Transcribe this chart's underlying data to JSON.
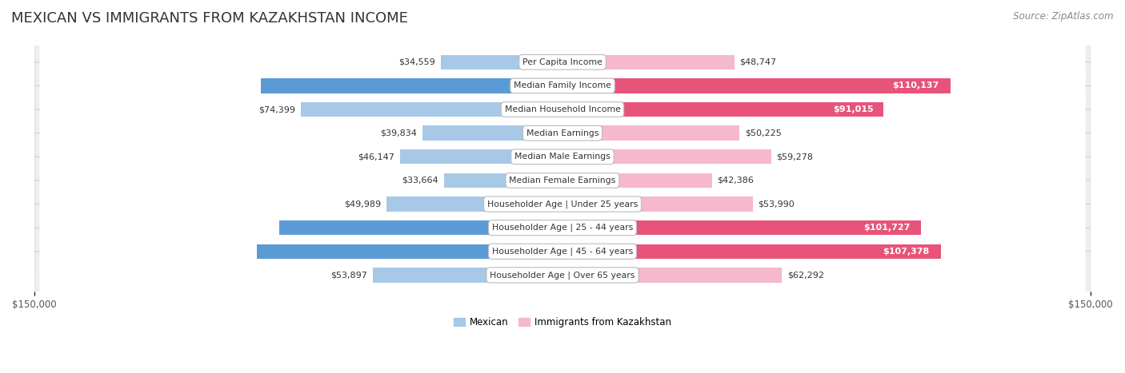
{
  "title": "MEXICAN VS IMMIGRANTS FROM KAZAKHSTAN INCOME",
  "source": "Source: ZipAtlas.com",
  "categories": [
    "Per Capita Income",
    "Median Family Income",
    "Median Household Income",
    "Median Earnings",
    "Median Male Earnings",
    "Median Female Earnings",
    "Householder Age | Under 25 years",
    "Householder Age | 25 - 44 years",
    "Householder Age | 45 - 64 years",
    "Householder Age | Over 65 years"
  ],
  "mexican_values": [
    34559,
    85618,
    74399,
    39834,
    46147,
    33664,
    49989,
    80427,
    86816,
    53897
  ],
  "kazakhstan_values": [
    48747,
    110137,
    91015,
    50225,
    59278,
    42386,
    53990,
    101727,
    107378,
    62292
  ],
  "mexican_color_light": "#a8c8e8",
  "mexican_color_dark": "#5b9bd5",
  "kazakhstan_color_light": "#f5b8cc",
  "kazakhstan_color_dark": "#e8537a",
  "bar_height": 0.62,
  "xlim": 150000,
  "xlabel_left": "$150,000",
  "xlabel_right": "$150,000",
  "bg_color": "#ffffff",
  "row_light": "#f0f0f0",
  "row_border": "#d0d0d0",
  "title_fontsize": 13,
  "source_fontsize": 8.5,
  "label_fontsize": 8,
  "category_fontsize": 7.8,
  "axis_fontsize": 8.5,
  "legend_fontsize": 8.5,
  "dark_threshold": 75000,
  "legend_label_mexican": "Mexican",
  "legend_label_kazakhstan": "Immigrants from Kazakhstan"
}
